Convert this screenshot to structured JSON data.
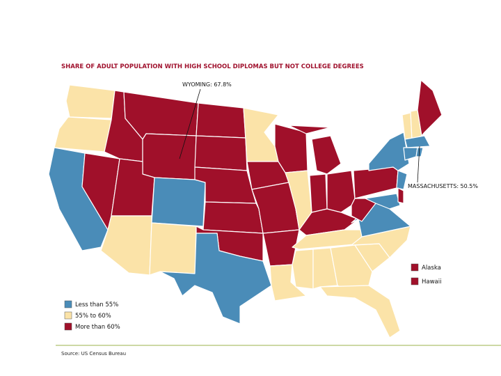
{
  "title": "SHARE OF ADULT POPULATION WITH HIGH SCHOOL DIPLOMAS BUT NOT COLLEGE DEGREES",
  "annotations": [
    "WYOMING: 67.8%",
    "MASSACHUSETTS: 50.5%"
  ],
  "legend": [
    {
      "label": "Less than 55%",
      "color": "#4a8cb8"
    },
    {
      "label": "55% to 60%",
      "color": "#fbe3a8"
    },
    {
      "label": "More than 60%",
      "color": "#a0102a"
    }
  ],
  "insets": [
    {
      "label": "Alaska",
      "color": "#a0102a"
    },
    {
      "label": "Hawaii",
      "color": "#a0102a"
    }
  ],
  "source": "Source: US Census Bureau"
}
